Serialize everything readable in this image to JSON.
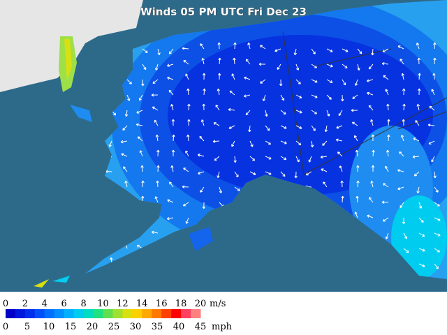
{
  "title": "Winds 05 PM UTC Fri Dec 23",
  "legend": {
    "ms_ticks": [
      0,
      2,
      4,
      6,
      8,
      10,
      12,
      14,
      16,
      18,
      20
    ],
    "ms_unit": "m/s",
    "mph_ticks": [
      0,
      5,
      10,
      15,
      20,
      25,
      30,
      35,
      40,
      45
    ],
    "mph_unit": "mph",
    "colors": [
      "#0000c8",
      "#0018dc",
      "#0030ec",
      "#0050fa",
      "#0070ff",
      "#0090ff",
      "#00b0ff",
      "#00ccf0",
      "#00dcc0",
      "#20e080",
      "#60e050",
      "#a0e030",
      "#d8e010",
      "#ffd000",
      "#ffa800",
      "#ff7800",
      "#ff4000",
      "#ff0000",
      "#ff4060",
      "#ff8080"
    ]
  }
}
